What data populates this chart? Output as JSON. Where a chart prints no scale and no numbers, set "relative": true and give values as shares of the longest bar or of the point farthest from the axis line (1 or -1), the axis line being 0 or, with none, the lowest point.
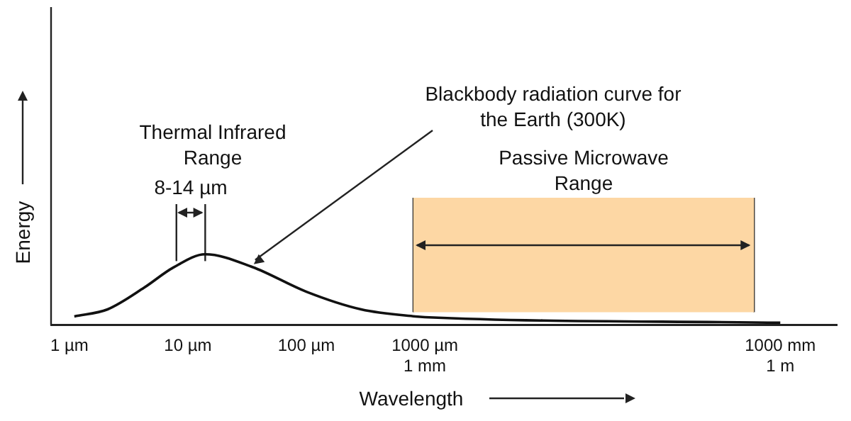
{
  "chart_data": {
    "type": "line",
    "relative": true,
    "log": "x",
    "xlabel": "Wavelength",
    "ylabel": "Energy",
    "x": [
      1.1,
      2.1,
      4.3,
      7.5,
      14,
      35,
      100,
      290,
      830,
      1000,
      1000000
    ],
    "series": [
      {
        "color": "#111111",
        "values": [
          0.12,
          0.22,
          0.53,
          0.81,
          1,
          0.82,
          0.47,
          0.22,
          0.12,
          0.11,
          0.03
        ]
      }
    ],
    "xlim": [
      0.7,
      3000000
    ],
    "xticks": [
      {
        "value": 1,
        "label": "1 µm"
      },
      {
        "value": 10,
        "label": "10 µm"
      },
      {
        "value": 100,
        "label": "100 µm"
      },
      {
        "value": 1000,
        "label": "1000 µm\n1 mm"
      },
      {
        "value": 1000000,
        "label": "1000 mm\n1 m"
      }
    ],
    "ref_lines": [
      {
        "axis": "x",
        "value": 8,
        "label": "8-14 µm"
      },
      {
        "axis": "x",
        "value": 14
      },
      {
        "axis": "x",
        "value": 800
      },
      {
        "axis": "x",
        "value": 600000
      }
    ],
    "bands": [
      {
        "axis": "x",
        "from": 800,
        "to": 600000,
        "label": "Passive Microwave Range",
        "color": "#fdd7a4"
      }
    ],
    "annotations": [
      "Thermal Infrared Range",
      {
        "text": "Blackbody radiation curve for the Earth (300K)",
        "x": 35,
        "y": 0.82
      }
    ],
    "grid": false,
    "legend": false,
    "marker": "none",
    "line_style": "solid"
  }
}
